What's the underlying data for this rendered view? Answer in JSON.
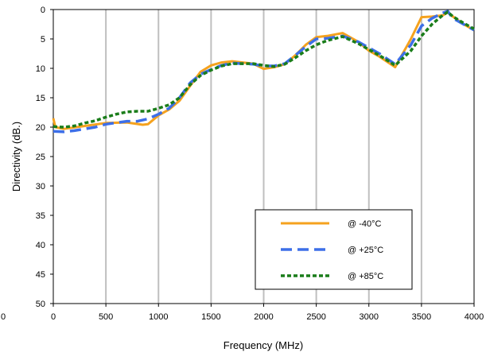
{
  "chart_data": {
    "type": "line",
    "xlabel": "Frequency (MHz)",
    "ylabel": "Directivity (dB.)",
    "xlim": [
      0,
      4000
    ],
    "ylim": [
      0,
      50
    ],
    "y_inverted": true,
    "x_ticks": [
      "0",
      "500",
      "1000",
      "1500",
      "2000",
      "2500",
      "3000",
      "3500",
      "4000"
    ],
    "y_ticks": [
      "0",
      "5",
      "10",
      "15",
      "20",
      "25",
      "30",
      "35",
      "40",
      "45",
      "50"
    ],
    "extra_x_tick_label": "0",
    "grid": {
      "vertical": true,
      "horizontal": false
    },
    "legend_position": "lower-right",
    "series": [
      {
        "name": "@ -40°C",
        "color": "#f5a21e",
        "style": "solid",
        "x": [
          0,
          20,
          100,
          300,
          500,
          700,
          850,
          900,
          1000,
          1100,
          1200,
          1300,
          1400,
          1500,
          1600,
          1700,
          1800,
          1900,
          2000,
          2100,
          2200,
          2300,
          2400,
          2500,
          2600,
          2750,
          2900,
          3000,
          3100,
          3250,
          3400,
          3500,
          3600,
          3700,
          3750,
          3800,
          3900,
          4000
        ],
        "y": [
          18.5,
          20.0,
          20.3,
          19.8,
          19.3,
          19.2,
          19.6,
          19.5,
          18.0,
          17.0,
          15.5,
          13.0,
          10.6,
          9.5,
          9.0,
          8.8,
          9.0,
          9.2,
          10.1,
          9.8,
          9.3,
          7.8,
          6.0,
          4.7,
          4.5,
          4.0,
          5.5,
          7.0,
          8.0,
          9.8,
          5.0,
          1.3,
          1.2,
          1.0,
          0.5,
          1.2,
          2.5,
          3.5
        ]
      },
      {
        "name": "@ +25°C",
        "color": "#3d6fe8",
        "style": "dashed",
        "x": [
          0,
          100,
          200,
          400,
          500,
          700,
          800,
          900,
          1000,
          1100,
          1200,
          1300,
          1400,
          1500,
          1600,
          1700,
          1800,
          1900,
          2000,
          2100,
          2200,
          2300,
          2400,
          2500,
          2600,
          2750,
          2900,
          3000,
          3100,
          3250,
          3400,
          3500,
          3600,
          3700,
          3750,
          3800,
          3900,
          4000
        ],
        "y": [
          20.7,
          20.8,
          20.6,
          20.0,
          19.5,
          19.0,
          19.0,
          18.6,
          17.8,
          16.8,
          15.0,
          12.5,
          11.0,
          10.2,
          9.5,
          9.1,
          9.2,
          9.3,
          9.6,
          9.6,
          9.2,
          7.8,
          6.3,
          5.0,
          4.9,
          4.5,
          5.5,
          6.5,
          7.5,
          9.3,
          6.0,
          2.8,
          1.5,
          0.6,
          0.3,
          1.5,
          2.5,
          3.5
        ]
      },
      {
        "name": "@ +85°C",
        "color": "#1a7d1a",
        "style": "dotted",
        "x": [
          0,
          100,
          200,
          300,
          400,
          500,
          600,
          700,
          800,
          900,
          1000,
          1100,
          1200,
          1300,
          1400,
          1500,
          1600,
          1700,
          1800,
          1900,
          2000,
          2100,
          2200,
          2300,
          2400,
          2500,
          2600,
          2750,
          2900,
          3000,
          3100,
          3250,
          3400,
          3500,
          3600,
          3700,
          3750,
          3800,
          3900,
          4000
        ],
        "y": [
          19.9,
          20.0,
          19.8,
          19.3,
          18.9,
          18.3,
          17.8,
          17.4,
          17.3,
          17.3,
          16.8,
          16.2,
          15.0,
          12.8,
          11.2,
          10.3,
          9.6,
          9.2,
          9.2,
          9.2,
          9.5,
          9.7,
          9.3,
          8.2,
          7.0,
          6.0,
          5.3,
          4.6,
          5.8,
          6.8,
          7.8,
          9.5,
          7.0,
          4.5,
          2.5,
          1.0,
          0.4,
          1.2,
          2.3,
          3.3
        ]
      }
    ]
  }
}
